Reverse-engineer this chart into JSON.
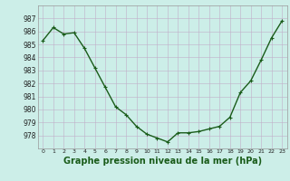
{
  "hours": [
    0,
    1,
    2,
    3,
    4,
    5,
    6,
    7,
    8,
    9,
    10,
    11,
    12,
    13,
    14,
    15,
    16,
    17,
    18,
    19,
    20,
    21,
    22,
    23
  ],
  "pressure": [
    985.3,
    986.3,
    985.8,
    985.9,
    984.7,
    983.2,
    981.7,
    980.2,
    979.6,
    978.7,
    978.1,
    977.8,
    977.5,
    978.2,
    978.2,
    978.3,
    978.5,
    978.7,
    979.4,
    981.3,
    982.2,
    983.8,
    985.5,
    986.8
  ],
  "line_color": "#1a5c1a",
  "marker": "+",
  "marker_size": 3,
  "bg_color": "#cceee8",
  "grid_color": "#c0afc8",
  "ylim": [
    977.0,
    988.0
  ],
  "yticks": [
    978,
    979,
    980,
    981,
    982,
    983,
    984,
    985,
    986,
    987
  ],
  "xticks": [
    0,
    1,
    2,
    3,
    4,
    5,
    6,
    7,
    8,
    9,
    10,
    11,
    12,
    13,
    14,
    15,
    16,
    17,
    18,
    19,
    20,
    21,
    22,
    23
  ],
  "xlabel": "Graphe pression niveau de la mer (hPa)",
  "xlabel_fontsize": 7,
  "xlabel_bold": true,
  "ytick_fontsize": 5.5,
  "xtick_fontsize": 4.5,
  "line_width": 1.0
}
